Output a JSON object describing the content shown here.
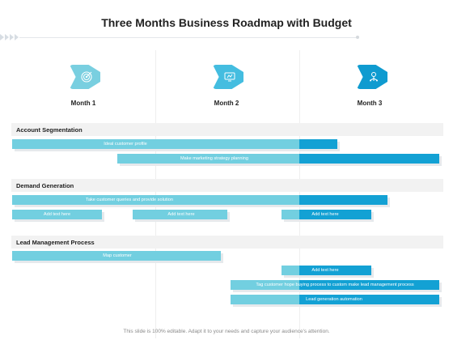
{
  "title": "Three Months Business Roadmap with Budget",
  "colors": {
    "light": "#72cfe0",
    "dark": "#13a1d4",
    "icon1": "#79cfe0",
    "icon2": "#44bde0",
    "icon3": "#0f9bd0"
  },
  "months": [
    {
      "label": "Month 1",
      "icon": "target-icon"
    },
    {
      "label": "Month 2",
      "icon": "marketing-icon"
    },
    {
      "label": "Month 3",
      "icon": "idea-network-icon"
    }
  ],
  "sections": [
    {
      "title": "Account  Segmentation"
    },
    {
      "title": "Demand Generation"
    },
    {
      "title": "Lead Management Process"
    }
  ],
  "bars": [
    {
      "label": "Ideal customer profile"
    },
    {
      "label": "Make marketing strategy planning"
    },
    {
      "label": "Take customer queries and provide solution"
    },
    {
      "label": "Add text here"
    },
    {
      "label": "Add text here"
    },
    {
      "label": "Add text here"
    },
    {
      "label": "Map customer"
    },
    {
      "label": "Add text here"
    },
    {
      "label": "Tag customer hope buying process to custom make lead management process"
    },
    {
      "label": "Lead generation automation"
    }
  ],
  "footer": "This slide is 100% editable. Adapt it to your needs and capture your audience's attention."
}
